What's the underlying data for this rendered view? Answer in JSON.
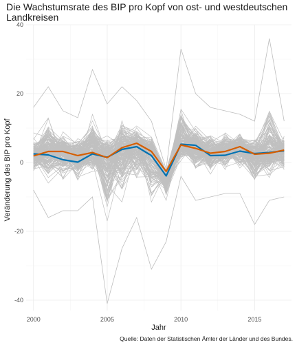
{
  "chart_data": {
    "type": "line",
    "title_line1": "Die Wachstumsrate des BIP pro Kopf von ost- und westdeutschen",
    "title_line2": "Landkreisen",
    "xlabel": "Jahr",
    "ylabel": "Veränderung des BIP pro Kopf",
    "caption": "Quelle: Daten der Statistischen Ämter der Länder und des Bundes.",
    "xlim": [
      1999.5,
      2017.5
    ],
    "ylim": [
      -43,
      40
    ],
    "x_ticks": [
      2000,
      2005,
      2010,
      2015
    ],
    "y_ticks": [
      -40,
      -20,
      0,
      20,
      40
    ],
    "grid": true,
    "x": [
      2000,
      2001,
      2002,
      2003,
      2004,
      2005,
      2006,
      2007,
      2008,
      2009,
      2010,
      2011,
      2012,
      2013,
      2014,
      2015,
      2016,
      2017
    ],
    "background_envelope": {
      "name": "Landkreise",
      "upper": [
        16,
        22,
        15,
        13,
        27,
        17,
        22,
        18,
        12,
        -2,
        33,
        20,
        16,
        15,
        14,
        12,
        36,
        12
      ],
      "lower": [
        -8,
        -16,
        -14,
        -14,
        -10,
        -41,
        -25,
        -16,
        -31,
        -23,
        -4,
        -11,
        -10,
        -9,
        -9,
        -18,
        -11,
        -10
      ]
    },
    "series": [
      {
        "color": "#0072B2",
        "values": [
          2.5,
          2.2,
          0.8,
          0.1,
          2.5,
          1.5,
          3.8,
          4.6,
          2.0,
          -3.9,
          5.3,
          5.0,
          2.0,
          2.1,
          3.3,
          2.6,
          2.9,
          3.4
        ]
      },
      {
        "color": "#D55E00",
        "values": [
          1.9,
          3.2,
          3.2,
          2.0,
          2.9,
          1.4,
          4.3,
          5.6,
          3.2,
          -2.6,
          5.1,
          4.1,
          2.7,
          3.2,
          4.6,
          2.4,
          2.7,
          3.6
        ]
      }
    ]
  }
}
